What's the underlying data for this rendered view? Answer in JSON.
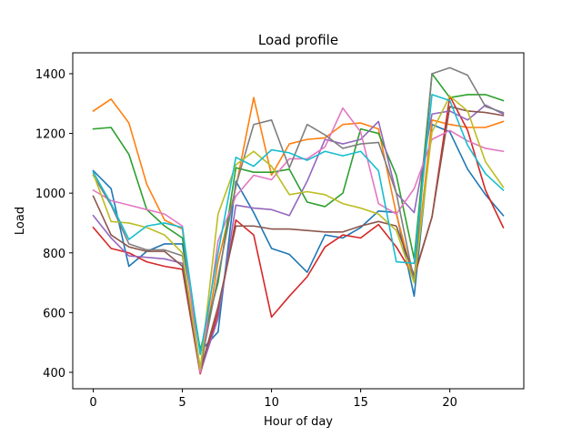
{
  "chart_data": {
    "type": "line",
    "title": "Load profile",
    "xlabel": "Hour of day",
    "ylabel": "Load",
    "xlim": [
      -1.15,
      24.15
    ],
    "ylim": [
      345,
      1470
    ],
    "xticks": [
      0,
      5,
      10,
      15,
      20
    ],
    "yticks": [
      400,
      600,
      800,
      1000,
      1200,
      1400
    ],
    "grid": false,
    "legend": "none",
    "x": [
      0,
      1,
      2,
      3,
      4,
      5,
      6,
      7,
      8,
      9,
      10,
      11,
      12,
      13,
      14,
      15,
      16,
      17,
      18,
      19,
      20,
      21,
      22,
      23
    ],
    "series": [
      {
        "color": "#1f77b4",
        "values": [
          1075,
          1015,
          755,
          805,
          830,
          830,
          470,
          535,
          1040,
          935,
          815,
          795,
          735,
          860,
          850,
          885,
          940,
          935,
          655,
          1230,
          1205,
          1080,
          995,
          925
        ]
      },
      {
        "color": "#ff7f0e",
        "values": [
          1275,
          1315,
          1235,
          1030,
          910,
          880,
          400,
          770,
          1020,
          1320,
          1060,
          1165,
          1180,
          1185,
          1230,
          1235,
          1215,
          930,
          705,
          1245,
          1230,
          1220,
          1220,
          1240
        ]
      },
      {
        "color": "#2ca02c",
        "values": [
          1215,
          1220,
          1130,
          945,
          890,
          850,
          475,
          700,
          1085,
          1070,
          1070,
          1080,
          970,
          955,
          1000,
          1215,
          1200,
          1060,
          780,
          1400,
          1320,
          1330,
          1330,
          1310
        ]
      },
      {
        "color": "#d62728",
        "values": [
          885,
          815,
          800,
          770,
          755,
          745,
          395,
          600,
          910,
          860,
          585,
          655,
          720,
          820,
          860,
          850,
          895,
          820,
          720,
          920,
          1325,
          1210,
          1010,
          885
        ]
      },
      {
        "color": "#9467bd",
        "values": [
          925,
          850,
          790,
          785,
          780,
          765,
          400,
          580,
          960,
          950,
          945,
          925,
          1040,
          1180,
          1165,
          1180,
          1240,
          1000,
          935,
          1265,
          1275,
          1245,
          1295,
          1265
        ]
      },
      {
        "color": "#8c564b",
        "values": [
          990,
          860,
          820,
          805,
          805,
          755,
          405,
          620,
          890,
          890,
          880,
          880,
          875,
          870,
          870,
          890,
          905,
          890,
          725,
          920,
          1290,
          1275,
          1270,
          1260
        ]
      },
      {
        "color": "#e377c2",
        "values": [
          1010,
          975,
          960,
          945,
          930,
          890,
          400,
          840,
          990,
          1060,
          1045,
          1115,
          1115,
          1155,
          1285,
          1205,
          965,
          930,
          1015,
          1180,
          1210,
          1175,
          1150,
          1140
        ]
      },
      {
        "color": "#7f7f7f",
        "values": [
          1060,
          960,
          830,
          810,
          810,
          790,
          415,
          720,
          1025,
          1230,
          1245,
          1085,
          1230,
          1195,
          1150,
          1165,
          1170,
          1000,
          705,
          1400,
          1420,
          1395,
          1290,
          1270
        ]
      },
      {
        "color": "#bcbd22",
        "values": [
          1065,
          905,
          900,
          885,
          860,
          800,
          410,
          930,
          1095,
          1140,
          1090,
          995,
          1005,
          995,
          965,
          950,
          930,
          875,
          700,
          1205,
          1325,
          1275,
          1105,
          1020
        ]
      },
      {
        "color": "#17becf",
        "values": [
          1070,
          965,
          845,
          890,
          900,
          885,
          460,
          800,
          1120,
          1090,
          1145,
          1135,
          1110,
          1140,
          1125,
          1140,
          1075,
          770,
          765,
          1330,
          1310,
          1160,
          1065,
          1010
        ]
      }
    ]
  }
}
